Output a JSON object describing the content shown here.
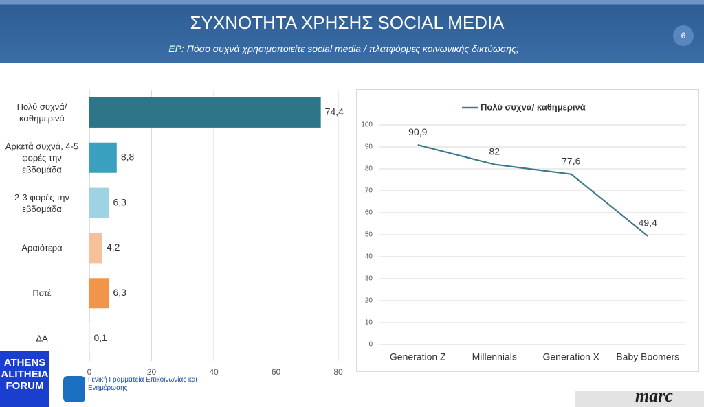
{
  "header": {
    "title": "ΣΥΧΝΟΤΗΤΑ ΧΡΗΣΗΣ SOCIAL MEDIA",
    "subtitle": "ΕΡ: Πόσο συχνά χρησιμοποιείτε social media / πλατφόρμες κοινωνικής δικτύωσης;",
    "page": "6"
  },
  "chart_data": [
    {
      "type": "hbar",
      "categories": [
        "Πολύ συχνά/ καθημερινά",
        "Αρκετά συχνά, 4-5 φορές την εβδομάδα",
        "2-3 φορές την εβδομάδα",
        "Αραιότερα",
        "Ποτέ",
        "ΔΑ"
      ],
      "values": [
        74.4,
        8.8,
        6.3,
        4.2,
        6.3,
        0.1
      ],
      "value_labels": [
        "74,4",
        "8,8",
        "6,3",
        "4,2",
        "6,3",
        "0,1"
      ],
      "colors": [
        "#2e7589",
        "#3ba0bf",
        "#9fd3e3",
        "#f5c09a",
        "#f0954a",
        "#c9e3ec"
      ],
      "xlim": [
        0,
        80
      ],
      "xticks": [
        0,
        20,
        40,
        60,
        80
      ],
      "grid": true
    },
    {
      "type": "line",
      "categories": [
        "Generation Z",
        "Millennials",
        "Generation X",
        "Baby Boomers"
      ],
      "series": [
        {
          "name": "Πολύ συχνά/ καθημερινά",
          "color": "#3d7a8a",
          "values": [
            90.9,
            82,
            77.6,
            49.4
          ],
          "value_labels": [
            "90,9",
            "82",
            "77,6",
            "49,4"
          ]
        }
      ],
      "ylim": [
        0,
        100
      ],
      "yticks": [
        0,
        10,
        20,
        30,
        40,
        50,
        60,
        70,
        80,
        90,
        100
      ],
      "grid": true,
      "legend": "top"
    }
  ],
  "footer": {
    "logo": "ATHENS ALITHEIA FORUM",
    "secretariat": "Γενική Γραμματεία Επικοινωνίας και Ενημέρωσης",
    "brand": "marc"
  }
}
